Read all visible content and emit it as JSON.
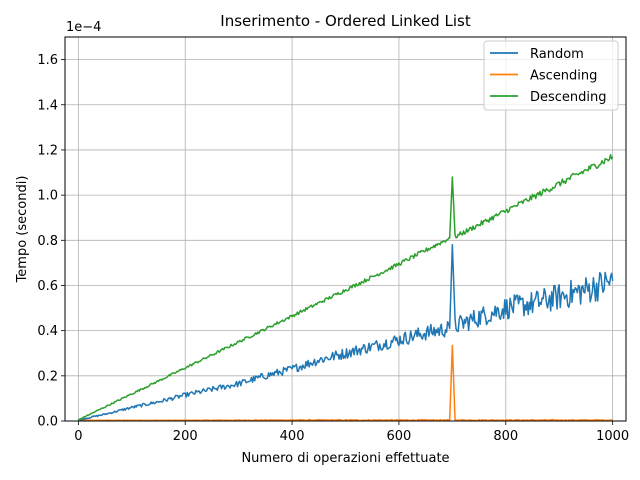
{
  "chart_data": {
    "type": "line",
    "title": "Inserimento - Ordered Linked List",
    "xlabel": "Numero di operazioni effettuate",
    "ylabel": "Tempo (secondi)",
    "y_offset_text": "1e−4",
    "xlim": [
      -25,
      1025
    ],
    "ylim": [
      0,
      1.7
    ],
    "y_scale_note": "values in units of 1e-4 seconds",
    "grid": true,
    "legend_position": "top-right",
    "x_ticks": [
      0,
      200,
      400,
      600,
      800,
      1000
    ],
    "x_tick_labels": [
      "0",
      "200",
      "400",
      "600",
      "800",
      "1000"
    ],
    "y_ticks": [
      0.0,
      0.2,
      0.4,
      0.6,
      0.8,
      1.0,
      1.2,
      1.4,
      1.6
    ],
    "y_tick_labels": [
      "0.0",
      "0.2",
      "0.4",
      "0.6",
      "0.8",
      "1.0",
      "1.2",
      "1.4",
      "1.6"
    ],
    "series": [
      {
        "name": "Random",
        "color": "#1f77b4",
        "points": [
          [
            0,
            0.005
          ],
          [
            50,
            0.03
          ],
          [
            100,
            0.06
          ],
          [
            150,
            0.085
          ],
          [
            200,
            0.115
          ],
          [
            250,
            0.14
          ],
          [
            300,
            0.165
          ],
          [
            350,
            0.2
          ],
          [
            400,
            0.23
          ],
          [
            450,
            0.27
          ],
          [
            500,
            0.3
          ],
          [
            550,
            0.33
          ],
          [
            600,
            0.36
          ],
          [
            650,
            0.39
          ],
          [
            695,
            0.41
          ],
          [
            700,
            0.78
          ],
          [
            705,
            0.42
          ],
          [
            750,
            0.46
          ],
          [
            800,
            0.5
          ],
          [
            850,
            0.52
          ],
          [
            900,
            0.55
          ],
          [
            950,
            0.58
          ],
          [
            1000,
            0.62
          ]
        ],
        "noise": [
          0.003,
          0.004,
          0.006,
          0.008,
          0.01,
          0.012,
          0.014,
          0.016,
          0.018,
          0.022,
          0.024,
          0.026,
          0.03,
          0.034,
          0.036,
          0.0,
          0.04,
          0.045,
          0.05,
          0.055,
          0.06,
          0.065,
          0.07
        ]
      },
      {
        "name": "Ascending",
        "color": "#ff7f0e",
        "points": [
          [
            0,
            0.003
          ],
          [
            200,
            0.003
          ],
          [
            400,
            0.004
          ],
          [
            600,
            0.004
          ],
          [
            695,
            0.004
          ],
          [
            700,
            0.335
          ],
          [
            705,
            0.004
          ],
          [
            800,
            0.004
          ],
          [
            1000,
            0.004
          ]
        ],
        "noise": [
          0.001,
          0.001,
          0.002,
          0.002,
          0.002,
          0.0,
          0.002,
          0.002,
          0.002
        ]
      },
      {
        "name": "Descending",
        "color": "#2ca02c",
        "points": [
          [
            0,
            0.005
          ],
          [
            100,
            0.12
          ],
          [
            200,
            0.235
          ],
          [
            300,
            0.35
          ],
          [
            400,
            0.465
          ],
          [
            500,
            0.58
          ],
          [
            600,
            0.695
          ],
          [
            695,
            0.81
          ],
          [
            700,
            1.08
          ],
          [
            705,
            0.815
          ],
          [
            800,
            0.93
          ],
          [
            900,
            1.05
          ],
          [
            1000,
            1.17
          ]
        ],
        "noise": [
          0.002,
          0.004,
          0.005,
          0.006,
          0.007,
          0.008,
          0.009,
          0.01,
          0.0,
          0.01,
          0.012,
          0.014,
          0.016
        ]
      }
    ]
  }
}
